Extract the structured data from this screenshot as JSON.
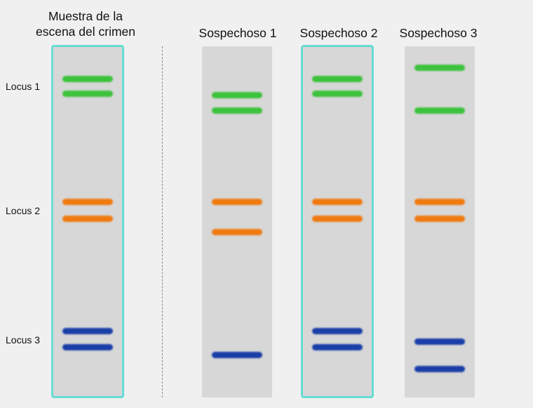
{
  "samples": [
    {
      "id": "crime",
      "title_line1": "Muestra de la",
      "title_line2": "escena del crimen",
      "highlighted": true,
      "bands": [
        {
          "locus": 1,
          "y": 112
        },
        {
          "locus": 1,
          "y": 133
        },
        {
          "locus": 2,
          "y": 287
        },
        {
          "locus": 2,
          "y": 311
        },
        {
          "locus": 3,
          "y": 471
        },
        {
          "locus": 3,
          "y": 494
        }
      ]
    },
    {
      "id": "s1",
      "title": "Sospechoso 1",
      "highlighted": false,
      "bands": [
        {
          "locus": 1,
          "y": 135
        },
        {
          "locus": 1,
          "y": 157
        },
        {
          "locus": 2,
          "y": 287
        },
        {
          "locus": 2,
          "y": 330
        },
        {
          "locus": 3,
          "y": 505
        }
      ]
    },
    {
      "id": "s2",
      "title": "Sospechoso 2",
      "highlighted": true,
      "bands": [
        {
          "locus": 1,
          "y": 112
        },
        {
          "locus": 1,
          "y": 133
        },
        {
          "locus": 2,
          "y": 287
        },
        {
          "locus": 2,
          "y": 311
        },
        {
          "locus": 3,
          "y": 471
        },
        {
          "locus": 3,
          "y": 494
        }
      ]
    },
    {
      "id": "s3",
      "title": "Sospechoso 3",
      "highlighted": false,
      "bands": [
        {
          "locus": 1,
          "y": 96
        },
        {
          "locus": 1,
          "y": 157
        },
        {
          "locus": 2,
          "y": 287
        },
        {
          "locus": 2,
          "y": 311
        },
        {
          "locus": 3,
          "y": 486
        },
        {
          "locus": 3,
          "y": 525
        }
      ]
    }
  ],
  "loci": [
    {
      "label": "Locus 1",
      "color": "#3cc23c"
    },
    {
      "label": "Locus 2",
      "color": "#f07a10"
    },
    {
      "label": "Locus 3",
      "color": "#1a3ea8"
    }
  ],
  "colors": {
    "lane": "#d7d7d7",
    "match_border": "#66dcd3",
    "background": "#f0f0f0"
  }
}
